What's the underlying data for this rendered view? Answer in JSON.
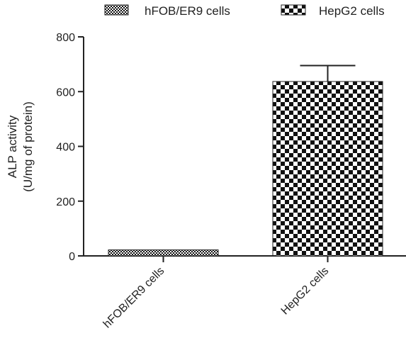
{
  "chart_data": {
    "type": "bar",
    "categories": [
      "hFOB/ER9 cells",
      "HepG2 cells"
    ],
    "values": [
      22,
      637
    ],
    "errors": [
      0,
      58
    ],
    "ylabel_lines": [
      "ALP activity",
      "(U/mg of protein)"
    ],
    "ylim": [
      0,
      800
    ],
    "yticks": [
      0,
      200,
      400,
      600,
      800
    ],
    "ytick_labels": [
      "0",
      "200",
      "400",
      "600",
      "800"
    ],
    "grid": false,
    "legend": {
      "placement": "top",
      "entries": [
        "hFOB/ER9 cells",
        "HepG2 cells"
      ]
    },
    "patterns": [
      "fine-checker",
      "coarse-checker"
    ],
    "colors": {
      "bar_fill": "#111111",
      "background": "#ffffff",
      "axis": "#222222"
    }
  }
}
